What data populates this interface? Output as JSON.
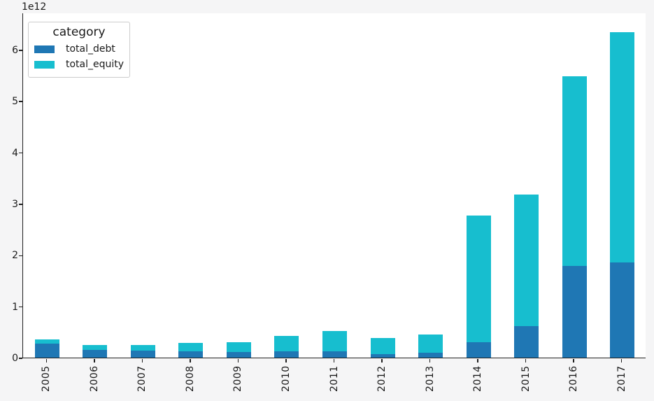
{
  "figure": {
    "background_color": "#f5f5f6",
    "plot_background_color": "#ffffff",
    "spine_color": "#1f1f1f",
    "text_color": "#1a1a1a",
    "legend_border_color": "#cccccc"
  },
  "chart_data": {
    "type": "bar",
    "stacked": true,
    "orientation": "vertical",
    "title": "",
    "xlabel": "",
    "ylabel": "",
    "legend_title": "category",
    "legend_position": "upper left",
    "y_offset_text": "1e12",
    "grid": false,
    "x_tick_rotation_deg": 90,
    "categories": [
      "2005",
      "2006",
      "2007",
      "2008",
      "2009",
      "2010",
      "2011",
      "2012",
      "2013",
      "2014",
      "2015",
      "2016",
      "2017"
    ],
    "series": [
      {
        "name": "total_debt",
        "color": "#1f77b4",
        "values_1e12": [
          0.27,
          0.15,
          0.13,
          0.12,
          0.11,
          0.12,
          0.12,
          0.07,
          0.1,
          0.3,
          0.61,
          1.79,
          1.85
        ]
      },
      {
        "name": "total_equity",
        "color": "#17becf",
        "values_1e12": [
          0.09,
          0.09,
          0.11,
          0.17,
          0.19,
          0.3,
          0.4,
          0.31,
          0.35,
          2.47,
          2.56,
          3.69,
          4.49
        ]
      }
    ],
    "stacked_totals_1e12": [
      0.36,
      0.24,
      0.24,
      0.29,
      0.3,
      0.42,
      0.52,
      0.38,
      0.45,
      2.77,
      3.17,
      5.48,
      6.34
    ],
    "y_tick_labels": [
      "0",
      "1",
      "2",
      "3",
      "4",
      "5",
      "6"
    ],
    "ylim_1e12": [
      0,
      6.72
    ]
  }
}
